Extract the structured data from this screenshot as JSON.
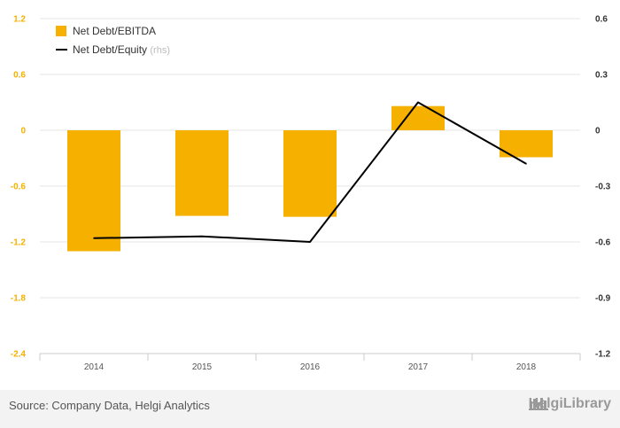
{
  "chart_data": {
    "type": "bar+line",
    "categories": [
      "2014",
      "2015",
      "2016",
      "2017",
      "2018"
    ],
    "series": [
      {
        "name": "Net Debt/EBITDA",
        "axis": "left",
        "type": "bar",
        "values": [
          -1.3,
          -0.92,
          -0.93,
          0.26,
          -0.29
        ]
      },
      {
        "name": "Net Debt/Equity",
        "axis": "right",
        "type": "line",
        "values": [
          -0.58,
          -0.57,
          -0.6,
          0.15,
          -0.18
        ]
      }
    ],
    "left_axis": {
      "ticks": [
        "1.2",
        "0.6",
        "0",
        "-0.6",
        "-1.2",
        "-1.8",
        "-2.4"
      ],
      "ylim": [
        -2.4,
        1.2
      ]
    },
    "right_axis": {
      "ticks": [
        "0.6",
        "0.3",
        "0",
        "-0.3",
        "-0.6",
        "-0.9",
        "-1.2"
      ],
      "ylim": [
        -1.2,
        0.6
      ]
    },
    "legend": {
      "bar_label": "Net Debt/EBITDA",
      "line_label": "Net Debt/Equity",
      "line_note": "(rhs)",
      "placement": "top-left"
    },
    "colors": {
      "bar": "#f6b000",
      "line": "#000000",
      "grid": "#e6e6e6"
    }
  },
  "footer": {
    "source": "Source: Company Data, Helgi Analytics",
    "brand": "HelgiLibrary",
    "brand_icon": "helgi-library-icon"
  }
}
